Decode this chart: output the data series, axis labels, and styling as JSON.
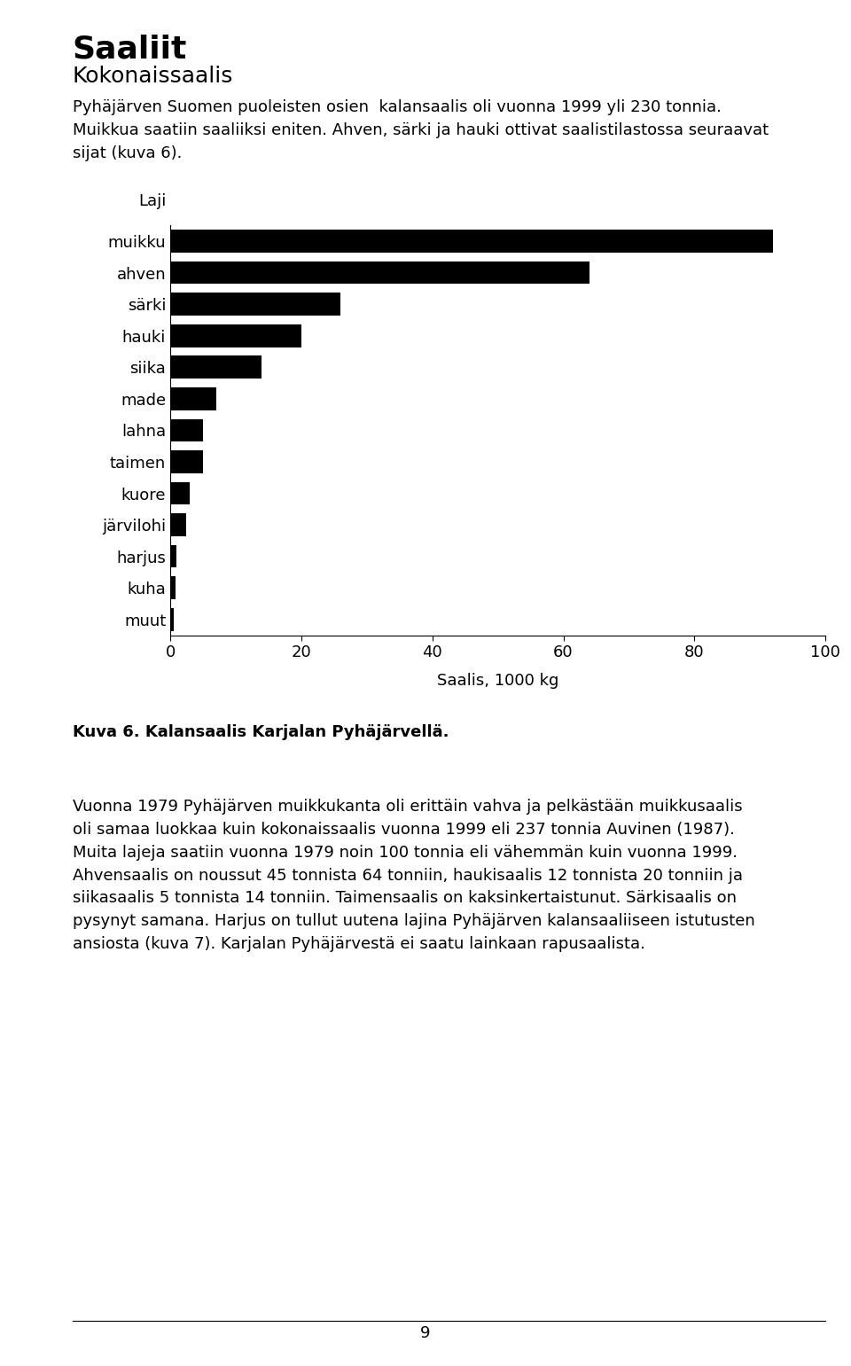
{
  "page_title": "Saaliit",
  "section_title": "Kokonaissaalis",
  "intro_text": "Pyhäjärven Suomen puoleisten osien  kalansaalis oli vuonna 1999 yli 230 tonnia.\nMuikkua saatiin saaliiksi eniten. Ahven, särki ja hauki ottivat saalistilastossa seuraavat\nsijat (kuva 6).",
  "species": [
    "muikku",
    "ahven",
    "särki",
    "hauki",
    "siika",
    "made",
    "lahna",
    "taimen",
    "kuore",
    "järvilohi",
    "harjus",
    "kuha",
    "muut"
  ],
  "values": [
    92,
    64,
    26,
    20,
    14,
    7,
    5,
    5,
    3,
    2.5,
    1,
    0.8,
    0.5
  ],
  "xlabel": "Saalis, 1000 kg",
  "xlim": [
    0,
    100
  ],
  "xticks": [
    0,
    20,
    40,
    60,
    80,
    100
  ],
  "figure_caption": "Kuva 6. Kalansaalis Karjalan Pyhäjärvellä.",
  "body_text": "Vuonna 1979 Pyhäjärven muikkukanta oli erittäin vahva ja pelkästään muikkusaalis\noli samaa luokkaa kuin kokonaissaalis vuonna 1999 eli 237 tonnia Auvinen (1987).\nMuita lajeja saatiin vuonna 1979 noin 100 tonnia eli vähemmän kuin vuonna 1999.\nAhvensaalis on noussut 45 tonnista 64 tonniin, haukisaalis 12 tonnista 20 tonniin ja\nsiikasaalis 5 tonnista 14 tonniin. Taimensaalis on kaksinkertaistunut. Särkisaalis on\npysynyt samana. Harjus on tullut uutena lajina Pyhäjärven kalansaaliiseen istutusten\nansiosta (kuva 7). Karjalan Pyhäjärvestä ei saatu lainkaan rapusaalista.",
  "page_number": "9",
  "bar_color": "#000000",
  "background_color": "#ffffff",
  "text_color": "#000000",
  "laji_label": "Laji",
  "title_fontsize": 26,
  "section_fontsize": 18,
  "body_fontsize": 13,
  "caption_fontsize": 13,
  "tick_fontsize": 13,
  "bar_label_fontsize": 13
}
